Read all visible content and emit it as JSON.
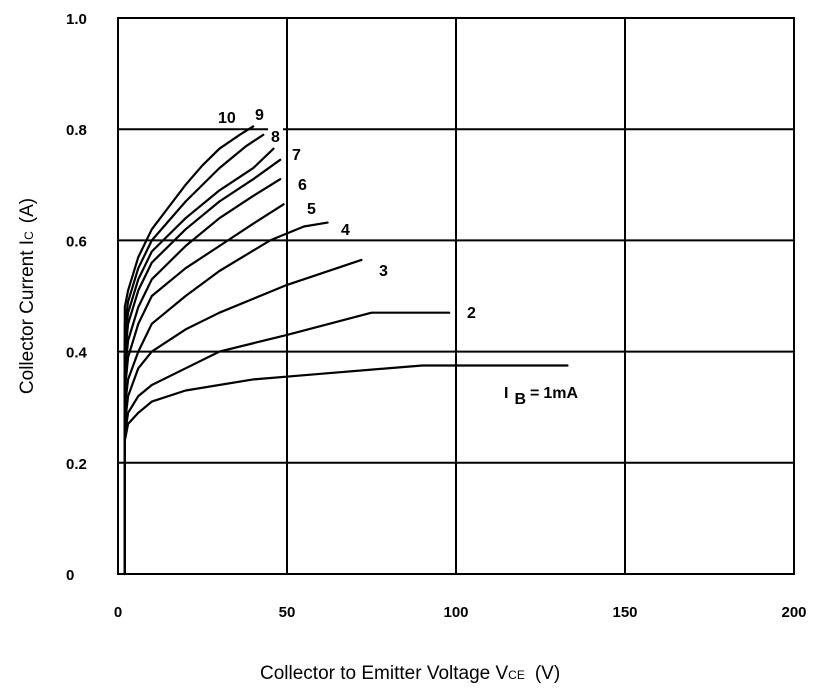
{
  "chart_data": {
    "type": "line",
    "title": "",
    "xlabel": "Collector to Emitter Voltage  V",
    "xlabel_sub": "CE",
    "xlabel_unit": "(V)",
    "ylabel": "Collector Current  I",
    "ylabel_sub": "C",
    "ylabel_unit": "(A)",
    "xlim": [
      0,
      200
    ],
    "ylim": [
      0,
      1.0
    ],
    "xticks": [
      0,
      50,
      100,
      150,
      200
    ],
    "xtick_labels": [
      "0",
      "50",
      "100",
      "150",
      "200"
    ],
    "yticks": [
      0,
      0.2,
      0.4,
      0.6,
      0.8,
      1.0
    ],
    "ytick_labels": [
      "0",
      "0.2",
      "0.4",
      "0.6",
      "0.8",
      "1.0"
    ],
    "grid": true,
    "series": [
      {
        "name": "I_B = 1mA",
        "label": "1mA",
        "label_prefix": "I",
        "label_sub": "B",
        "label_eq": "=",
        "points": [
          [
            2,
            0
          ],
          [
            2,
            0.24
          ],
          [
            3,
            0.27
          ],
          [
            6,
            0.29
          ],
          [
            10,
            0.31
          ],
          [
            20,
            0.33
          ],
          [
            40,
            0.35
          ],
          [
            60,
            0.36
          ],
          [
            90,
            0.375
          ],
          [
            133,
            0.375
          ]
        ]
      },
      {
        "name": "2",
        "label": "2",
        "points": [
          [
            2,
            0
          ],
          [
            2,
            0.25
          ],
          [
            3,
            0.29
          ],
          [
            6,
            0.32
          ],
          [
            10,
            0.34
          ],
          [
            20,
            0.37
          ],
          [
            30,
            0.4
          ],
          [
            50,
            0.43
          ],
          [
            75,
            0.47
          ],
          [
            98,
            0.47
          ]
        ]
      },
      {
        "name": "3",
        "label": "3",
        "points": [
          [
            2,
            0
          ],
          [
            2,
            0.27
          ],
          [
            3,
            0.32
          ],
          [
            6,
            0.37
          ],
          [
            10,
            0.4
          ],
          [
            20,
            0.44
          ],
          [
            30,
            0.47
          ],
          [
            50,
            0.52
          ],
          [
            72,
            0.565
          ]
        ]
      },
      {
        "name": "4",
        "label": "4",
        "points": [
          [
            2,
            0
          ],
          [
            2,
            0.3
          ],
          [
            3,
            0.35
          ],
          [
            6,
            0.4
          ],
          [
            10,
            0.45
          ],
          [
            20,
            0.5
          ],
          [
            30,
            0.545
          ],
          [
            45,
            0.6
          ],
          [
            55,
            0.625
          ],
          [
            62,
            0.632
          ]
        ]
      },
      {
        "name": "5",
        "label": "5",
        "points": [
          [
            2,
            0
          ],
          [
            2,
            0.33
          ],
          [
            3,
            0.39
          ],
          [
            6,
            0.45
          ],
          [
            10,
            0.5
          ],
          [
            20,
            0.55
          ],
          [
            30,
            0.59
          ],
          [
            40,
            0.63
          ],
          [
            49,
            0.665
          ]
        ]
      },
      {
        "name": "6",
        "label": "6",
        "points": [
          [
            2,
            0
          ],
          [
            2,
            0.36
          ],
          [
            3,
            0.42
          ],
          [
            6,
            0.48
          ],
          [
            10,
            0.53
          ],
          [
            20,
            0.59
          ],
          [
            30,
            0.64
          ],
          [
            40,
            0.68
          ],
          [
            48,
            0.71
          ]
        ]
      },
      {
        "name": "7",
        "label": "7",
        "points": [
          [
            2,
            0
          ],
          [
            2,
            0.39
          ],
          [
            3,
            0.45
          ],
          [
            6,
            0.51
          ],
          [
            10,
            0.56
          ],
          [
            20,
            0.62
          ],
          [
            30,
            0.67
          ],
          [
            40,
            0.71
          ],
          [
            48,
            0.745
          ]
        ]
      },
      {
        "name": "8",
        "label": "8",
        "points": [
          [
            2,
            0
          ],
          [
            2,
            0.42
          ],
          [
            3,
            0.47
          ],
          [
            6,
            0.53
          ],
          [
            10,
            0.58
          ],
          [
            20,
            0.64
          ],
          [
            30,
            0.69
          ],
          [
            40,
            0.73
          ],
          [
            46,
            0.765
          ]
        ]
      },
      {
        "name": "9",
        "label": "9",
        "points": [
          [
            2,
            0
          ],
          [
            2,
            0.45
          ],
          [
            3,
            0.49
          ],
          [
            6,
            0.55
          ],
          [
            10,
            0.6
          ],
          [
            20,
            0.67
          ],
          [
            30,
            0.73
          ],
          [
            38,
            0.77
          ],
          [
            43,
            0.79
          ]
        ]
      },
      {
        "name": "10",
        "label": "10",
        "points": [
          [
            2,
            0
          ],
          [
            2,
            0.48
          ],
          [
            3,
            0.51
          ],
          [
            6,
            0.57
          ],
          [
            10,
            0.62
          ],
          [
            15,
            0.66
          ],
          [
            20,
            0.7
          ],
          [
            25,
            0.735
          ],
          [
            30,
            0.765
          ],
          [
            36,
            0.79
          ],
          [
            40,
            0.805
          ]
        ]
      }
    ]
  }
}
